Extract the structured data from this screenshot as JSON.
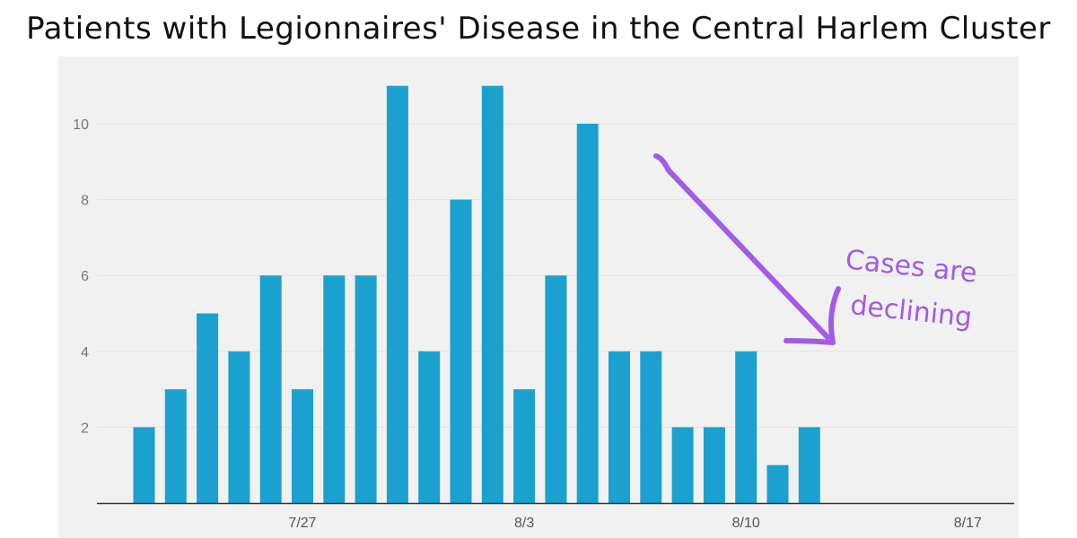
{
  "chart_data": {
    "type": "bar",
    "title": "Patients with Legionnaires' Disease in the Central Harlem Cluster",
    "xlabel": "",
    "ylabel": "",
    "x_dates": [
      "7/22",
      "7/23",
      "7/24",
      "7/25",
      "7/26",
      "7/27",
      "7/28",
      "7/29",
      "7/30",
      "7/31",
      "8/1",
      "8/2",
      "8/3",
      "8/4",
      "8/5",
      "8/6",
      "8/7",
      "8/8",
      "8/9",
      "8/10",
      "8/11",
      "8/12"
    ],
    "values": [
      2,
      3,
      5,
      4,
      6,
      3,
      6,
      6,
      11,
      4,
      8,
      11,
      3,
      6,
      10,
      4,
      4,
      2,
      2,
      4,
      1,
      2
    ],
    "ylim": [
      0,
      11.5
    ],
    "y_ticks": [
      2,
      4,
      6,
      8,
      10
    ],
    "x_ticks": [
      "7/27",
      "8/3",
      "8/10",
      "8/17"
    ],
    "x_range": [
      "7/20",
      "8/17"
    ],
    "grid": true,
    "bar_color": "#1ba1cf",
    "annotation": {
      "text_line1": "Cases are",
      "text_line2": "declining",
      "color": "#a25be7"
    }
  }
}
